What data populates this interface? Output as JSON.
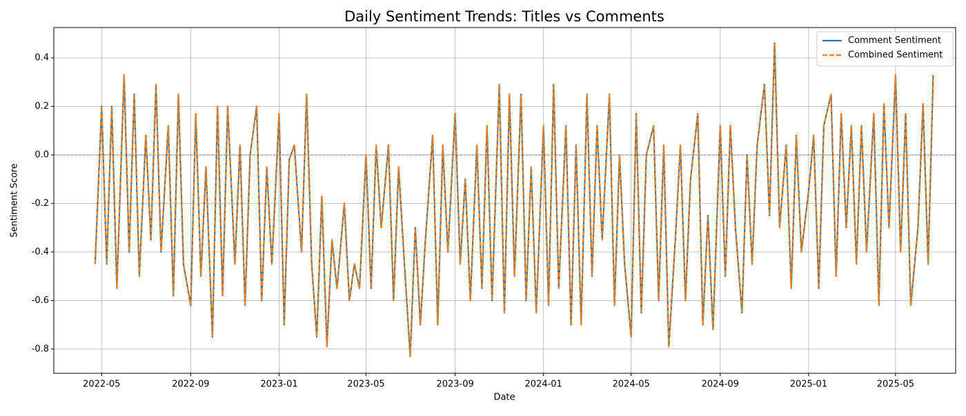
{
  "chart_data": {
    "type": "line",
    "title": "Daily Sentiment Trends: Titles vs Comments",
    "xlabel": "Date",
    "ylabel": "Sentiment Score",
    "x": [
      "2022-04-22",
      "2022-05-01",
      "2022-05-08",
      "2022-05-15",
      "2022-05-22",
      "2022-06-01",
      "2022-06-08",
      "2022-06-15",
      "2022-06-22",
      "2022-07-01",
      "2022-07-08",
      "2022-07-15",
      "2022-07-22",
      "2022-08-01",
      "2022-08-08",
      "2022-08-15",
      "2022-08-22",
      "2022-09-01",
      "2022-09-08",
      "2022-09-15",
      "2022-09-22",
      "2022-10-01",
      "2022-10-08",
      "2022-10-15",
      "2022-10-22",
      "2022-11-01",
      "2022-11-08",
      "2022-11-15",
      "2022-11-22",
      "2022-12-01",
      "2022-12-08",
      "2022-12-15",
      "2022-12-22",
      "2023-01-01",
      "2023-01-08",
      "2023-01-15",
      "2023-01-22",
      "2023-02-01",
      "2023-02-08",
      "2023-02-15",
      "2023-02-22",
      "2023-03-01",
      "2023-03-08",
      "2023-03-15",
      "2023-03-22",
      "2023-04-01",
      "2023-04-08",
      "2023-04-15",
      "2023-04-22",
      "2023-05-01",
      "2023-05-08",
      "2023-05-15",
      "2023-05-22",
      "2023-06-01",
      "2023-06-08",
      "2023-06-15",
      "2023-06-22",
      "2023-07-01",
      "2023-07-08",
      "2023-07-15",
      "2023-07-22",
      "2023-08-01",
      "2023-08-08",
      "2023-08-15",
      "2023-08-22",
      "2023-09-01",
      "2023-09-08",
      "2023-09-15",
      "2023-09-22",
      "2023-10-01",
      "2023-10-08",
      "2023-10-15",
      "2023-10-22",
      "2023-11-01",
      "2023-11-08",
      "2023-11-15",
      "2023-11-22",
      "2023-12-01",
      "2023-12-08",
      "2023-12-15",
      "2023-12-22",
      "2024-01-01",
      "2024-01-08",
      "2024-01-15",
      "2024-01-22",
      "2024-02-01",
      "2024-02-08",
      "2024-02-15",
      "2024-02-22",
      "2024-03-01",
      "2024-03-08",
      "2024-03-15",
      "2024-03-22",
      "2024-04-01",
      "2024-04-08",
      "2024-04-15",
      "2024-04-22",
      "2024-05-01",
      "2024-05-08",
      "2024-05-15",
      "2024-05-22",
      "2024-06-01",
      "2024-06-08",
      "2024-06-15",
      "2024-06-22",
      "2024-07-01",
      "2024-07-08",
      "2024-07-15",
      "2024-07-22",
      "2024-08-01",
      "2024-08-08",
      "2024-08-15",
      "2024-08-22",
      "2024-09-01",
      "2024-09-08",
      "2024-09-15",
      "2024-09-22",
      "2024-10-01",
      "2024-10-08",
      "2024-10-15",
      "2024-10-22",
      "2024-11-01",
      "2024-11-08",
      "2024-11-15",
      "2024-11-22",
      "2024-12-01",
      "2024-12-08",
      "2024-12-15",
      "2024-12-22",
      "2025-01-01",
      "2025-01-08",
      "2025-01-15",
      "2025-01-22",
      "2025-02-01",
      "2025-02-08",
      "2025-02-15",
      "2025-02-22",
      "2025-03-01",
      "2025-03-08",
      "2025-03-15",
      "2025-03-22",
      "2025-04-01",
      "2025-04-08",
      "2025-04-15",
      "2025-04-22",
      "2025-05-01",
      "2025-05-08",
      "2025-05-15",
      "2025-05-22",
      "2025-06-01",
      "2025-06-08",
      "2025-06-15",
      "2025-06-22"
    ],
    "series": [
      {
        "name": "Comment Sentiment",
        "color": "#1f77b4",
        "dashed": false,
        "values": [
          -0.45,
          0.2,
          -0.45,
          0.2,
          -0.55,
          0.33,
          -0.4,
          0.25,
          -0.5,
          0.08,
          -0.35,
          0.29,
          -0.4,
          0.12,
          -0.58,
          0.25,
          -0.45,
          -0.62,
          0.17,
          -0.5,
          -0.05,
          -0.75,
          0.2,
          -0.58,
          0.2,
          -0.45,
          0.04,
          -0.62,
          0.0,
          0.2,
          -0.6,
          -0.05,
          -0.45,
          0.17,
          -0.7,
          -0.02,
          0.04,
          -0.4,
          0.25,
          -0.45,
          -0.75,
          -0.17,
          -0.79,
          -0.35,
          -0.55,
          -0.2,
          -0.6,
          -0.45,
          -0.55,
          0.0,
          -0.55,
          0.04,
          -0.3,
          0.04,
          -0.6,
          -0.05,
          -0.4,
          -0.83,
          -0.3,
          -0.7,
          -0.35,
          0.08,
          -0.7,
          0.04,
          -0.4,
          0.17,
          -0.45,
          -0.1,
          -0.6,
          0.04,
          -0.55,
          0.12,
          -0.6,
          0.29,
          -0.65,
          0.25,
          -0.5,
          0.25,
          -0.6,
          -0.05,
          -0.65,
          0.12,
          -0.62,
          0.29,
          -0.55,
          0.12,
          -0.7,
          0.04,
          -0.7,
          0.25,
          -0.5,
          0.12,
          -0.35,
          0.25,
          -0.62,
          0.0,
          -0.45,
          -0.75,
          0.17,
          -0.65,
          0.0,
          0.12,
          -0.6,
          0.04,
          -0.79,
          -0.35,
          0.04,
          -0.6,
          -0.1,
          0.17,
          -0.7,
          -0.25,
          -0.72,
          0.12,
          -0.5,
          0.12,
          -0.3,
          -0.65,
          0.0,
          -0.45,
          0.04,
          0.29,
          -0.25,
          0.46,
          -0.3,
          0.04,
          -0.55,
          0.08,
          -0.4,
          -0.15,
          0.08,
          -0.55,
          0.12,
          0.25,
          -0.5,
          0.17,
          -0.3,
          0.12,
          -0.45,
          0.12,
          -0.4,
          0.17,
          -0.62,
          0.21,
          -0.3,
          0.33,
          -0.4,
          0.17,
          -0.62,
          -0.3,
          0.21,
          -0.45,
          0.33
        ]
      },
      {
        "name": "Combined Sentiment",
        "color": "#ff7f0e",
        "dashed": true,
        "values": [
          -0.45,
          0.2,
          -0.45,
          0.2,
          -0.55,
          0.33,
          -0.4,
          0.25,
          -0.5,
          0.08,
          -0.35,
          0.29,
          -0.4,
          0.12,
          -0.58,
          0.25,
          -0.45,
          -0.62,
          0.17,
          -0.5,
          -0.05,
          -0.75,
          0.2,
          -0.58,
          0.2,
          -0.45,
          0.04,
          -0.62,
          0.0,
          0.2,
          -0.6,
          -0.05,
          -0.45,
          0.17,
          -0.7,
          -0.02,
          0.04,
          -0.4,
          0.25,
          -0.45,
          -0.75,
          -0.17,
          -0.79,
          -0.35,
          -0.55,
          -0.2,
          -0.6,
          -0.45,
          -0.55,
          0.0,
          -0.55,
          0.04,
          -0.3,
          0.04,
          -0.6,
          -0.05,
          -0.4,
          -0.83,
          -0.3,
          -0.7,
          -0.35,
          0.08,
          -0.7,
          0.04,
          -0.4,
          0.17,
          -0.45,
          -0.1,
          -0.6,
          0.04,
          -0.55,
          0.12,
          -0.6,
          0.29,
          -0.65,
          0.25,
          -0.5,
          0.25,
          -0.6,
          -0.05,
          -0.65,
          0.12,
          -0.62,
          0.29,
          -0.55,
          0.12,
          -0.7,
          0.04,
          -0.7,
          0.25,
          -0.5,
          0.12,
          -0.35,
          0.25,
          -0.62,
          0.0,
          -0.45,
          -0.75,
          0.17,
          -0.65,
          0.0,
          0.12,
          -0.6,
          0.04,
          -0.79,
          -0.35,
          0.04,
          -0.6,
          -0.1,
          0.17,
          -0.7,
          -0.25,
          -0.72,
          0.12,
          -0.5,
          0.12,
          -0.3,
          -0.65,
          0.0,
          -0.45,
          0.04,
          0.29,
          -0.25,
          0.46,
          -0.3,
          0.04,
          -0.55,
          0.08,
          -0.4,
          -0.15,
          0.08,
          -0.55,
          0.12,
          0.25,
          -0.5,
          0.17,
          -0.3,
          0.12,
          -0.45,
          0.12,
          -0.4,
          0.17,
          -0.62,
          0.21,
          -0.3,
          0.33,
          -0.4,
          0.17,
          -0.62,
          -0.3,
          0.21,
          -0.45,
          0.33
        ]
      }
    ],
    "xlim": [
      "2022-02-24",
      "2025-07-23"
    ],
    "xticks": [
      {
        "value": "2022-05-01",
        "label": "2022-05"
      },
      {
        "value": "2022-09-01",
        "label": "2022-09"
      },
      {
        "value": "2023-01-01",
        "label": "2023-01"
      },
      {
        "value": "2023-05-01",
        "label": "2023-05"
      },
      {
        "value": "2023-09-01",
        "label": "2023-09"
      },
      {
        "value": "2024-01-01",
        "label": "2024-01"
      },
      {
        "value": "2024-05-01",
        "label": "2024-05"
      },
      {
        "value": "2024-09-01",
        "label": "2024-09"
      },
      {
        "value": "2025-01-01",
        "label": "2025-01"
      },
      {
        "value": "2025-05-01",
        "label": "2025-05"
      }
    ],
    "ylim": [
      -0.9,
      0.525
    ],
    "yticks": [
      -0.8,
      -0.6,
      -0.4,
      -0.2,
      {
        "value": 0,
        "label": "0.0"
      },
      0.2,
      0.4
    ],
    "reference_line": 0,
    "grid": true,
    "legend": "upper right"
  }
}
